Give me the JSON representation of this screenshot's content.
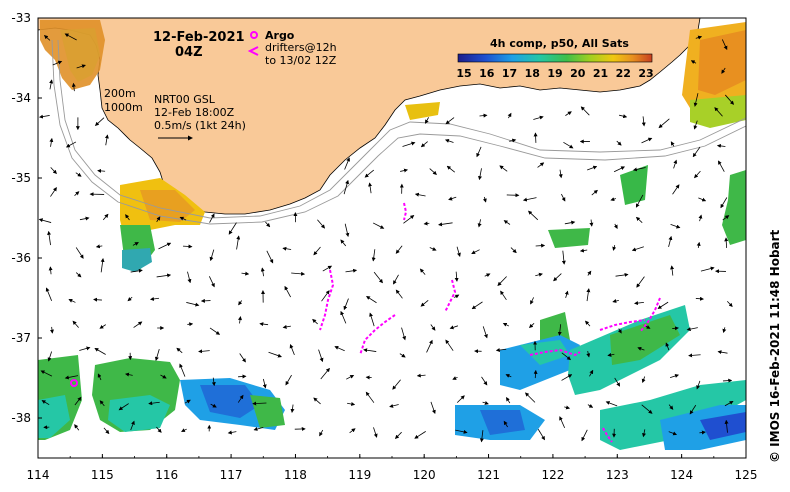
{
  "title": {
    "date": "12-Feb-2021",
    "time": "04Z"
  },
  "legend": {
    "argo_label": "Argo",
    "drifters_label": "drifters@12h",
    "drifters_to": "to 13/02 12Z",
    "isobath_200": "200m",
    "isobath_1000": "1000m",
    "altimetry_product": "NRT00 GSL",
    "altimetry_time": "12-Feb 18:00Z",
    "scale_label": "0.5m/s (1kt 24h)"
  },
  "colorbar": {
    "title": "4h comp, p50, All Sats",
    "ticks": [
      "15",
      "16",
      "17",
      "18",
      "19",
      "20",
      "21",
      "22",
      "23"
    ],
    "range": [
      15,
      23
    ],
    "colors": [
      "#1d1d8a",
      "#1f4fd0",
      "#1fa0e6",
      "#25c7a6",
      "#3fbf4a",
      "#a0d020",
      "#f0c810",
      "#e89020",
      "#c84020"
    ]
  },
  "axes": {
    "x_ticks": [
      "114",
      "115",
      "116",
      "117",
      "118",
      "119",
      "120",
      "121",
      "122",
      "123",
      "124",
      "125"
    ],
    "y_ticks": [
      "-33",
      "-34",
      "-35",
      "-36",
      "-37",
      "-38"
    ],
    "lon_range": [
      114,
      125
    ],
    "lat_range": [
      -38.5,
      -33
    ]
  },
  "credit": "© IMOS 16-Feb-2021 11:48 Hobart",
  "colors": {
    "land": "#f9c998",
    "argo": "#ff00ff",
    "drifter": "#ff00ff",
    "isobath": "#9a9a9a"
  }
}
